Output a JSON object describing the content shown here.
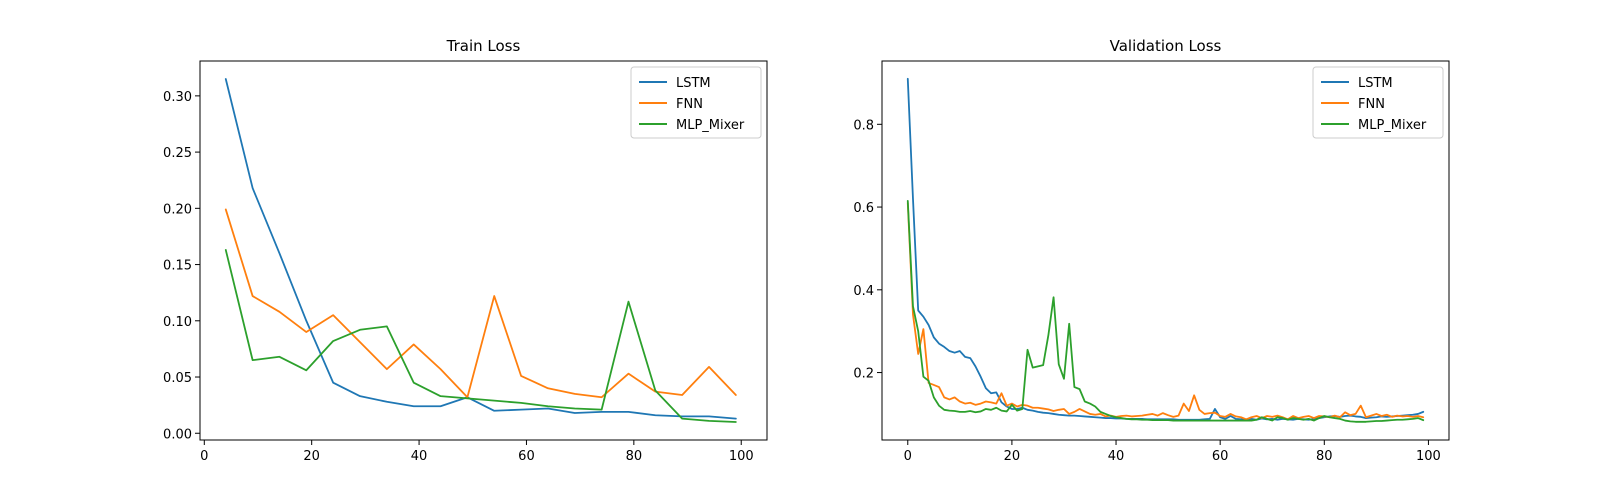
{
  "chart_data": [
    {
      "type": "line",
      "title": "Train Loss",
      "xlabel": "",
      "ylabel": "",
      "xlim": [
        -0.8,
        104.8
      ],
      "ylim": [
        -0.006,
        0.331
      ],
      "xticks": [
        0,
        20,
        40,
        60,
        80,
        100
      ],
      "yticks": [
        0.0,
        0.05,
        0.1,
        0.15,
        0.2,
        0.25,
        0.3
      ],
      "xtick_labels": [
        "0",
        "20",
        "40",
        "60",
        "80",
        "100"
      ],
      "ytick_labels": [
        "0.00",
        "0.05",
        "0.10",
        "0.15",
        "0.20",
        "0.25",
        "0.30"
      ],
      "grid": false,
      "legend_position": "top-right",
      "x": [
        4,
        9,
        14,
        19,
        24,
        29,
        34,
        39,
        44,
        49,
        54,
        59,
        64,
        69,
        74,
        79,
        84,
        89,
        94,
        99
      ],
      "series": [
        {
          "name": "LSTM",
          "color": "#1f77b4",
          "values": [
            0.315,
            0.218,
            0.16,
            0.1,
            0.045,
            0.033,
            0.028,
            0.024,
            0.024,
            0.032,
            0.02,
            0.021,
            0.022,
            0.018,
            0.019,
            0.019,
            0.016,
            0.015,
            0.015,
            0.013
          ]
        },
        {
          "name": "FNN",
          "color": "#ff7f0e",
          "values": [
            0.199,
            0.122,
            0.108,
            0.09,
            0.105,
            0.081,
            0.057,
            0.079,
            0.057,
            0.032,
            0.122,
            0.051,
            0.04,
            0.035,
            0.032,
            0.053,
            0.037,
            0.034,
            0.059,
            0.034
          ]
        },
        {
          "name": "MLP_Mixer",
          "color": "#2ca02c",
          "values": [
            0.163,
            0.065,
            0.068,
            0.056,
            0.082,
            0.092,
            0.095,
            0.045,
            0.033,
            0.031,
            0.029,
            0.027,
            0.024,
            0.022,
            0.021,
            0.117,
            0.038,
            0.013,
            0.011,
            0.01
          ]
        }
      ]
    },
    {
      "type": "line",
      "title": "Validation Loss",
      "xlabel": "",
      "ylabel": "",
      "xlim": [
        -4.95,
        103.95
      ],
      "ylim": [
        0.037,
        0.953
      ],
      "xticks": [
        0,
        20,
        40,
        60,
        80,
        100
      ],
      "yticks": [
        0.2,
        0.4,
        0.6,
        0.8
      ],
      "xtick_labels": [
        "0",
        "20",
        "40",
        "60",
        "80",
        "100"
      ],
      "ytick_labels": [
        "0.2",
        "0.4",
        "0.6",
        "0.8"
      ],
      "grid": false,
      "legend_position": "top-right",
      "x": [
        0,
        1,
        2,
        3,
        4,
        5,
        6,
        7,
        8,
        9,
        10,
        11,
        12,
        13,
        14,
        15,
        16,
        17,
        18,
        19,
        20,
        21,
        22,
        23,
        24,
        25,
        26,
        27,
        28,
        29,
        30,
        31,
        32,
        33,
        34,
        35,
        36,
        37,
        38,
        39,
        40,
        41,
        42,
        43,
        44,
        45,
        46,
        47,
        48,
        49,
        50,
        51,
        52,
        53,
        54,
        55,
        56,
        57,
        58,
        59,
        60,
        61,
        62,
        63,
        64,
        65,
        66,
        67,
        68,
        69,
        70,
        71,
        72,
        73,
        74,
        75,
        76,
        77,
        78,
        79,
        80,
        81,
        82,
        83,
        84,
        85,
        86,
        87,
        88,
        89,
        90,
        91,
        92,
        93,
        94,
        95,
        96,
        97,
        98,
        99
      ],
      "series": [
        {
          "name": "LSTM",
          "color": "#1f77b4",
          "values": [
            0.91,
            0.62,
            0.35,
            0.335,
            0.315,
            0.285,
            0.27,
            0.262,
            0.252,
            0.248,
            0.252,
            0.238,
            0.235,
            0.215,
            0.19,
            0.162,
            0.15,
            0.152,
            0.128,
            0.118,
            0.112,
            0.112,
            0.115,
            0.11,
            0.108,
            0.105,
            0.103,
            0.102,
            0.1,
            0.098,
            0.097,
            0.096,
            0.096,
            0.095,
            0.094,
            0.093,
            0.092,
            0.091,
            0.09,
            0.09,
            0.089,
            0.089,
            0.088,
            0.088,
            0.088,
            0.088,
            0.087,
            0.087,
            0.087,
            0.087,
            0.087,
            0.087,
            0.086,
            0.086,
            0.086,
            0.086,
            0.086,
            0.087,
            0.088,
            0.112,
            0.092,
            0.088,
            0.095,
            0.088,
            0.087,
            0.086,
            0.088,
            0.086,
            0.089,
            0.087,
            0.088,
            0.086,
            0.088,
            0.087,
            0.086,
            0.088,
            0.087,
            0.086,
            0.088,
            0.09,
            0.092,
            0.094,
            0.095,
            0.093,
            0.095,
            0.096,
            0.094,
            0.093,
            0.09,
            0.091,
            0.092,
            0.094,
            0.093,
            0.094,
            0.095,
            0.096,
            0.097,
            0.098,
            0.1,
            0.105
          ]
        },
        {
          "name": "FNN",
          "color": "#ff7f0e",
          "values": [
            0.61,
            0.34,
            0.245,
            0.305,
            0.175,
            0.17,
            0.165,
            0.14,
            0.135,
            0.14,
            0.13,
            0.125,
            0.127,
            0.122,
            0.125,
            0.13,
            0.128,
            0.125,
            0.15,
            0.12,
            0.125,
            0.118,
            0.122,
            0.12,
            0.115,
            0.115,
            0.113,
            0.111,
            0.107,
            0.11,
            0.112,
            0.1,
            0.105,
            0.112,
            0.106,
            0.1,
            0.098,
            0.1,
            0.094,
            0.096,
            0.093,
            0.095,
            0.096,
            0.094,
            0.095,
            0.096,
            0.098,
            0.1,
            0.096,
            0.102,
            0.097,
            0.093,
            0.096,
            0.125,
            0.107,
            0.145,
            0.11,
            0.1,
            0.102,
            0.103,
            0.095,
            0.093,
            0.1,
            0.094,
            0.092,
            0.087,
            0.092,
            0.095,
            0.09,
            0.095,
            0.093,
            0.096,
            0.092,
            0.087,
            0.095,
            0.09,
            0.093,
            0.095,
            0.09,
            0.095,
            0.094,
            0.092,
            0.096,
            0.092,
            0.104,
            0.097,
            0.1,
            0.12,
            0.092,
            0.096,
            0.1,
            0.095,
            0.098,
            0.093,
            0.096,
            0.094,
            0.095,
            0.093,
            0.095,
            0.092
          ]
        },
        {
          "name": "MLP_Mixer",
          "color": "#2ca02c",
          "values": [
            0.615,
            0.36,
            0.3,
            0.19,
            0.18,
            0.14,
            0.12,
            0.11,
            0.108,
            0.107,
            0.105,
            0.105,
            0.107,
            0.104,
            0.106,
            0.112,
            0.11,
            0.115,
            0.108,
            0.106,
            0.122,
            0.108,
            0.112,
            0.255,
            0.212,
            0.215,
            0.218,
            0.29,
            0.382,
            0.22,
            0.185,
            0.318,
            0.165,
            0.16,
            0.13,
            0.125,
            0.118,
            0.105,
            0.1,
            0.095,
            0.092,
            0.09,
            0.088,
            0.087,
            0.087,
            0.086,
            0.086,
            0.085,
            0.085,
            0.085,
            0.085,
            0.084,
            0.084,
            0.084,
            0.084,
            0.084,
            0.084,
            0.084,
            0.084,
            0.084,
            0.084,
            0.084,
            0.084,
            0.084,
            0.084,
            0.084,
            0.084,
            0.086,
            0.092,
            0.088,
            0.084,
            0.092,
            0.09,
            0.086,
            0.09,
            0.088,
            0.086,
            0.088,
            0.084,
            0.09,
            0.095,
            0.092,
            0.09,
            0.088,
            0.084,
            0.082,
            0.081,
            0.081,
            0.081,
            0.082,
            0.083,
            0.083,
            0.084,
            0.085,
            0.086,
            0.086,
            0.087,
            0.088,
            0.09,
            0.085
          ]
        }
      ]
    }
  ]
}
